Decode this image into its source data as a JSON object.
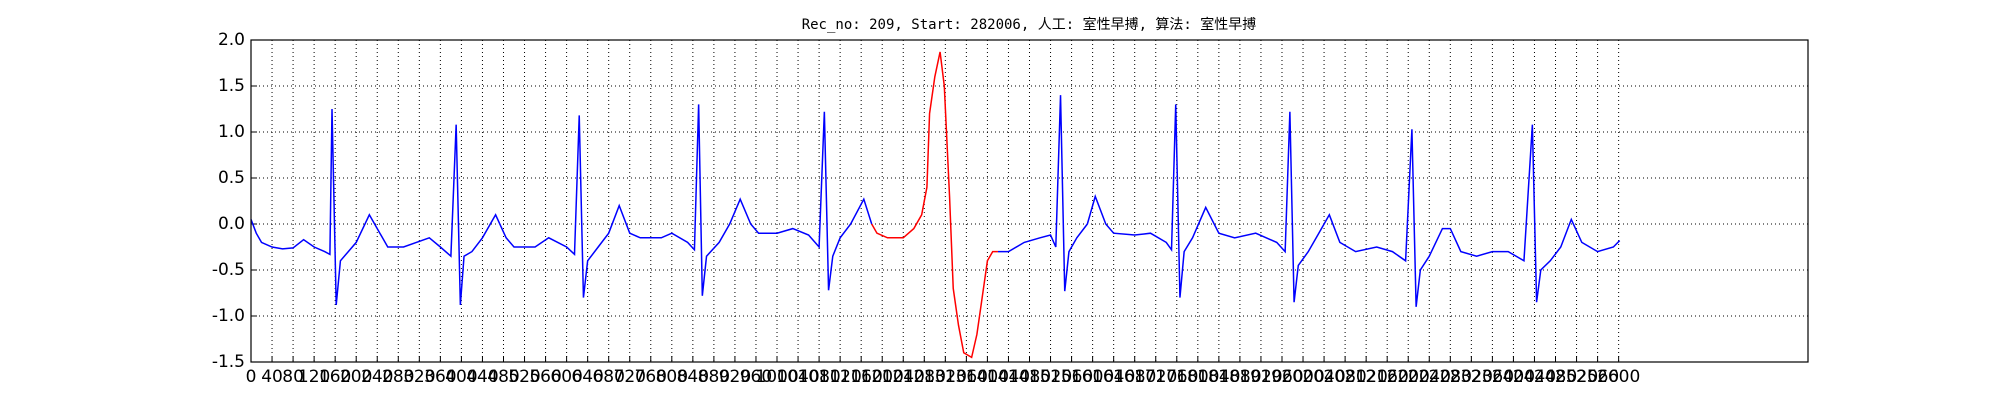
{
  "chart_data": {
    "type": "line",
    "title": "Rec_no: 209, Start: 282006, 人工: 室性早搏, 算法: 室性早搏",
    "grid": true,
    "xlim": [
      0,
      2960
    ],
    "ylim": [
      -1.5,
      2.0
    ],
    "xticks": [
      0,
      40,
      80,
      120,
      160,
      200,
      240,
      280,
      320,
      360,
      400,
      440,
      480,
      520,
      560,
      600,
      640,
      680,
      720,
      760,
      800,
      840,
      880,
      920,
      960,
      1000,
      1040,
      1080,
      1120,
      1160,
      1200,
      1240,
      1280,
      1320,
      1360,
      1400,
      1440,
      1480,
      1520,
      1560,
      1600,
      1640,
      1680,
      1720,
      1760,
      1800,
      1840,
      1880,
      1920,
      1960,
      2000,
      2040,
      2080,
      2120,
      2160,
      2200,
      2240,
      2280,
      2320,
      2360,
      2400,
      2440,
      2480,
      2520,
      2560,
      2600
    ],
    "yticks": [
      -1.5,
      {
        "value": -1.0,
        "label": "-1.0"
      },
      -0.5,
      {
        "value": 0.0,
        "label": "0.0"
      },
      0.5,
      {
        "value": 1.0,
        "label": "1.0"
      },
      1.5,
      {
        "value": 2.0,
        "label": "2.0"
      }
    ],
    "series": [
      {
        "color": "#0000ff",
        "x": [
          0,
          10,
          20,
          40,
          60,
          80,
          100,
          120,
          140,
          150,
          154,
          162,
          170,
          185,
          200,
          225,
          245,
          260,
          290,
          339,
          360,
          380,
          390,
          398,
          405,
          420,
          440,
          465,
          485,
          500,
          540,
          566,
          600,
          615,
          624,
          632,
          640,
          660,
          680,
          700,
          720,
          740,
          780,
          800,
          830,
          843,
          851,
          858,
          866,
          890,
          910,
          930,
          950,
          965,
          1000,
          1030,
          1060,
          1080,
          1090,
          1098,
          1106,
          1120,
          1140,
          1165,
          1180,
          1300,
          1420,
          1440,
          1470,
          1500,
          1520,
          1530,
          1539,
          1547,
          1555,
          1570,
          1590,
          1605,
          1625,
          1640,
          1680,
          1710,
          1740,
          1750,
          1758,
          1766,
          1774,
          1790,
          1815,
          1840,
          1870,
          1910,
          1950,
          1966,
          1975,
          1983,
          1991,
          2010,
          2030,
          2050,
          2070,
          2100,
          2140,
          2170,
          2195,
          2207,
          2215,
          2223,
          2240,
          2265,
          2280,
          2300,
          2330,
          2360,
          2390,
          2420,
          2436,
          2444,
          2452,
          2470,
          2490,
          2510,
          2530,
          2560,
          2590,
          2602
        ],
        "values": [
          0.05,
          -0.1,
          -0.2,
          -0.25,
          -0.27,
          -0.26,
          -0.17,
          -0.25,
          -0.3,
          -0.33,
          1.25,
          -0.88,
          -0.4,
          -0.3,
          -0.2,
          0.1,
          -0.1,
          -0.25,
          -0.25,
          -0.15,
          -0.25,
          -0.35,
          1.08,
          -0.88,
          -0.35,
          -0.3,
          -0.15,
          0.1,
          -0.15,
          -0.25,
          -0.25,
          -0.15,
          -0.25,
          -0.33,
          1.18,
          -0.8,
          -0.4,
          -0.25,
          -0.1,
          0.2,
          -0.1,
          -0.15,
          -0.15,
          -0.1,
          -0.2,
          -0.28,
          1.3,
          -0.78,
          -0.35,
          -0.2,
          0.0,
          0.27,
          0.0,
          -0.1,
          -0.1,
          -0.05,
          -0.12,
          -0.25,
          1.22,
          -0.72,
          -0.35,
          -0.15,
          0.0,
          0.27,
          0.0,
          null,
          -0.3,
          -0.3,
          -0.2,
          -0.15,
          -0.12,
          -0.25,
          1.4,
          -0.73,
          -0.3,
          -0.15,
          0.0,
          0.3,
          0.0,
          -0.1,
          -0.12,
          -0.1,
          -0.2,
          -0.28,
          1.3,
          -0.8,
          -0.3,
          -0.15,
          0.18,
          -0.1,
          -0.15,
          -0.1,
          -0.2,
          -0.3,
          1.22,
          -0.85,
          -0.45,
          -0.3,
          -0.1,
          0.1,
          -0.2,
          -0.3,
          -0.25,
          -0.3,
          -0.4,
          1.03,
          -0.9,
          -0.5,
          -0.35,
          -0.05,
          -0.05,
          -0.3,
          -0.35,
          -0.3,
          -0.3,
          -0.4,
          1.08,
          -0.85,
          -0.5,
          -0.4,
          -0.25,
          0.05,
          -0.2,
          -0.3,
          -0.25,
          -0.18
        ]
      },
      {
        "color": "#ff0000",
        "x": [
          1180,
          1190,
          1210,
          1240,
          1260,
          1275,
          1285,
          1290,
          1300,
          1310,
          1318,
          1328,
          1335,
          1345,
          1355,
          1370,
          1380,
          1390,
          1400,
          1410,
          1420
        ],
        "values": [
          0.0,
          -0.1,
          -0.15,
          -0.15,
          -0.05,
          0.1,
          0.4,
          1.2,
          1.6,
          1.87,
          1.5,
          0.3,
          -0.7,
          -1.1,
          -1.4,
          -1.45,
          -1.2,
          -0.8,
          -0.4,
          -0.3,
          -0.3
        ]
      }
    ]
  }
}
